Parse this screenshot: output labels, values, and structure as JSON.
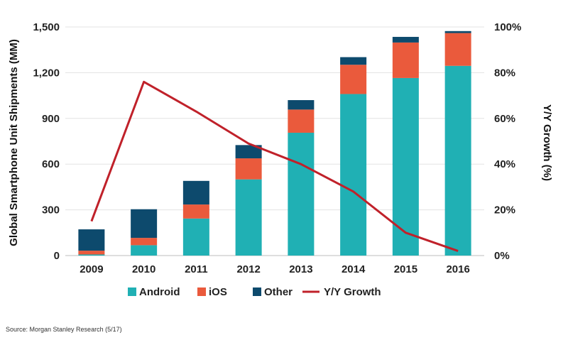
{
  "chart_data": {
    "type": "bar",
    "stacked": true,
    "categories": [
      "2009",
      "2010",
      "2011",
      "2012",
      "2013",
      "2014",
      "2015",
      "2016"
    ],
    "series": [
      {
        "name": "Android",
        "color": "#20B0B4",
        "values": [
          7,
          68,
          243,
          500,
          806,
          1060,
          1165,
          1245
        ]
      },
      {
        "name": "iOS",
        "color": "#EA5A3C",
        "values": [
          25,
          48,
          92,
          138,
          152,
          192,
          233,
          215
        ]
      },
      {
        "name": "Other",
        "color": "#0D4A6D",
        "values": [
          140,
          188,
          155,
          87,
          62,
          50,
          37,
          13
        ]
      }
    ],
    "line_series": {
      "name": "Y/Y Growth",
      "color": "#C0212A",
      "axis": "right",
      "values": [
        15,
        76,
        63,
        49,
        40,
        28,
        10,
        2
      ]
    },
    "ylabel": "Global Smartphone Unit Shipments (MM)",
    "ylim": [
      0,
      1500
    ],
    "yticks": [
      "0",
      "300",
      "600",
      "900",
      "1,200",
      "1,500"
    ],
    "y2label": "Y/Y Growth (%)",
    "y2lim": [
      0,
      100
    ],
    "y2ticks": [
      "0%",
      "20%",
      "40%",
      "60%",
      "80%",
      "100%"
    ],
    "grid": true,
    "legend_position": "bottom"
  },
  "source": "Source: Morgan Stanley Research (5/17)"
}
